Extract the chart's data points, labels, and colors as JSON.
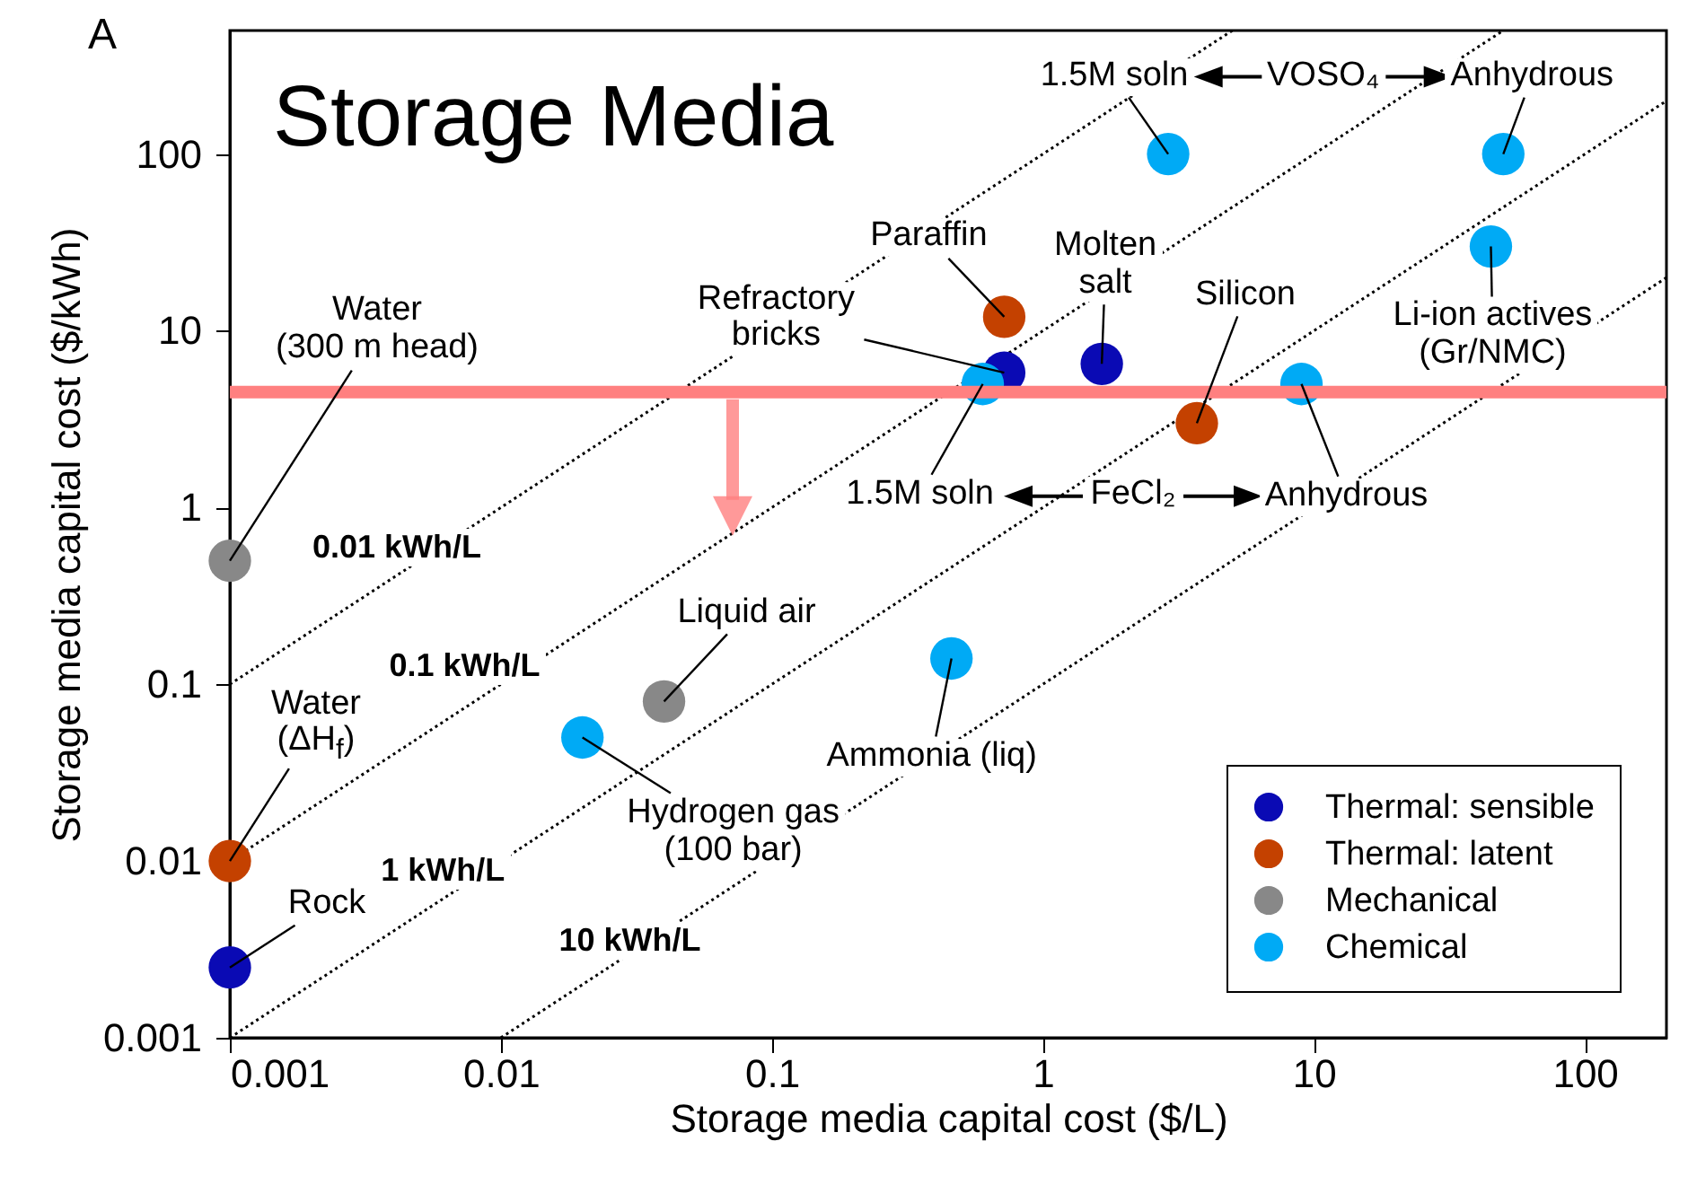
{
  "chart_data": {
    "type": "scatter",
    "title": "Storage Media",
    "xlabel": "Storage media capital cost ($/L)",
    "ylabel": "Storage media capital cost ($/kWh)",
    "log": "xy",
    "xlim": [
      0.001,
      200
    ],
    "ylim": [
      0.001,
      500
    ],
    "xticks": [
      0.001,
      0.01,
      0.1,
      1,
      10,
      100
    ],
    "yticks": [
      0.001,
      0.01,
      0.1,
      1,
      10,
      100
    ],
    "grid": false,
    "legend": "bottom right",
    "marker": "circle",
    "ref_lines": [
      {
        "axis": "y",
        "value": 4.5,
        "color": "#ff8080"
      }
    ],
    "series": [
      {
        "name": "0.01 kWh/L",
        "type": "line",
        "color": "#000000",
        "line_style": "dotted",
        "marker": "none",
        "x": [
          0.001,
          5
        ],
        "values": [
          0.1,
          500
        ]
      },
      {
        "name": "0.1 kWh/L",
        "type": "line",
        "color": "#000000",
        "line_style": "dotted",
        "marker": "none",
        "x": [
          0.001,
          50
        ],
        "values": [
          0.01,
          500
        ]
      },
      {
        "name": "1 kWh/L",
        "type": "line",
        "color": "#000000",
        "line_style": "dotted",
        "marker": "none",
        "x": [
          0.001,
          200
        ],
        "values": [
          0.001,
          200
        ]
      },
      {
        "name": "10 kWh/L",
        "type": "line",
        "color": "#000000",
        "line_style": "dotted",
        "marker": "none",
        "x": [
          0.01,
          200
        ],
        "values": [
          0.001,
          20
        ]
      },
      {
        "name": "Thermal: sensible",
        "color": "#0a0ab4",
        "x": [
          0.001,
          0.72,
          1.65
        ],
        "values": [
          0.0025,
          5.8,
          6.5
        ]
      },
      {
        "name": "Thermal: latent",
        "color": "#c44100",
        "x": [
          0.001,
          0.72,
          3.7
        ],
        "values": [
          0.01,
          12,
          3
        ]
      },
      {
        "name": "Mechanical",
        "color": "#888888",
        "x": [
          0.001,
          0.04
        ],
        "values": [
          0.5,
          0.08
        ]
      },
      {
        "name": "Chemical",
        "color": "#00aaf5",
        "x": [
          0.02,
          0.46,
          0.6,
          9,
          2.9,
          50,
          45
        ],
        "values": [
          0.05,
          0.14,
          5,
          5,
          100,
          100,
          30
        ]
      }
    ],
    "annotations": [
      "A",
      {
        "text": "Water\n(300 m head)",
        "x": 0.001,
        "y": 0.5
      },
      {
        "text": "Water\n(ΔH$_{f}$)",
        "x": 0.001,
        "y": 0.01
      },
      {
        "text": "Rock",
        "x": 0.001,
        "y": 0.0025
      },
      {
        "text": "Liquid air",
        "x": 0.04,
        "y": 0.08
      },
      {
        "text": "Hydrogen gas\n(100 bar)",
        "x": 0.02,
        "y": 0.05
      },
      {
        "text": "Ammonia (liq)",
        "x": 0.46,
        "y": 0.14
      },
      {
        "text": "Refractory\nbricks",
        "x": 0.72,
        "y": 5.8
      },
      {
        "text": "Paraffin",
        "x": 0.72,
        "y": 12
      },
      {
        "text": "Molten\nsalt",
        "x": 1.65,
        "y": 6.5
      },
      {
        "text": "Silicon",
        "x": 3.7,
        "y": 3
      },
      {
        "text": "Li-ion actives\n(Gr/NMC)",
        "x": 45,
        "y": 30
      },
      {
        "text": "1.5M soln",
        "x": 0.6,
        "y": 5
      },
      "FeCl₂",
      {
        "text": "Anhydrous",
        "x": 9,
        "y": 5
      },
      {
        "text": "1.5M soln",
        "x": 2.9,
        "y": 100
      },
      "VOSO₄",
      {
        "text": "Anhydrous",
        "x": 50,
        "y": 100
      }
    ]
  }
}
